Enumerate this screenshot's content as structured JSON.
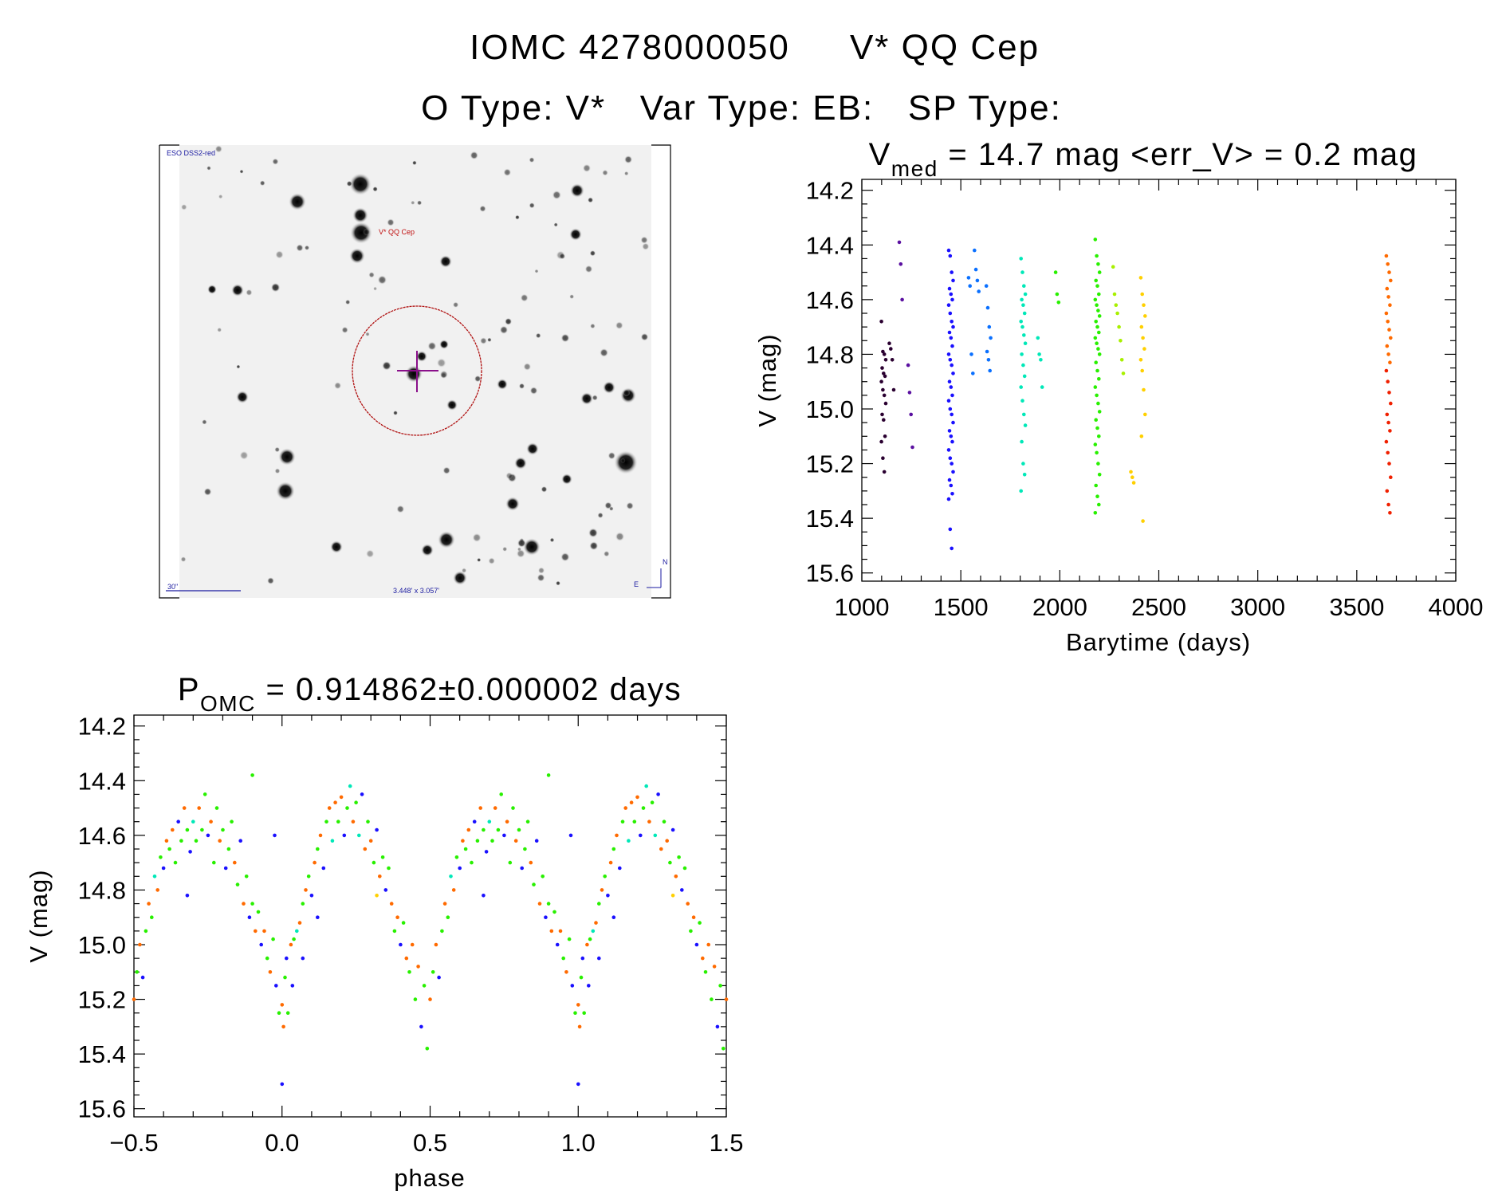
{
  "header": {
    "title_id": "IOMC 4278000050",
    "title_name": "V* QQ Cep",
    "type_line": "O Type: V*   Var Type: EB:   SP Type:"
  },
  "sky_image": {
    "survey_label": "ESO DSS2-red",
    "target_label": "V* QQ Cep",
    "scale_label": "30\"",
    "field_size_label": "3.448' x 3.057'",
    "north_label": "N",
    "east_label": "E"
  },
  "colors": [
    "#2a0030",
    "#5a10a0",
    "#1a10ff",
    "#0a70ff",
    "#00e8b8",
    "#28f000",
    "#a8f000",
    "#ffd000",
    "#ff6a00",
    "#f02000"
  ],
  "chart_data": [
    {
      "type": "scatter",
      "title_main": "V",
      "title_sub": "med",
      "title_rest": " = 14.7 mag <err_V> = 0.2 mag",
      "xlabel": "Barytime (days)",
      "ylabel": "V (mag)",
      "xlim": [
        1000,
        4000
      ],
      "ylim": [
        14.16,
        15.63
      ],
      "y_inverted": true,
      "xticks": [
        "1000",
        "1500",
        "2000",
        "2500",
        "3000",
        "3500",
        "4000"
      ],
      "yticks": [
        "14.2",
        "14.4",
        "14.6",
        "14.8",
        "15.0",
        "15.2",
        "15.4",
        "15.6"
      ],
      "groups": [
        {
          "t": 1110,
          "c": 0,
          "v": [
            14.68,
            14.79,
            14.8,
            14.82,
            14.85,
            14.87,
            14.88,
            14.9,
            14.93,
            14.95,
            14.98,
            15.02,
            15.04,
            15.1,
            15.12,
            15.18,
            15.23
          ]
        },
        {
          "t": 1150,
          "c": 0,
          "v": [
            14.76,
            14.78,
            14.82,
            14.93
          ]
        },
        {
          "t": 1200,
          "c": 1,
          "v": [
            14.39,
            14.47,
            14.6
          ]
        },
        {
          "t": 1245,
          "c": 1,
          "v": [
            14.84,
            14.94,
            15.02,
            15.14
          ]
        },
        {
          "t": 1450,
          "c": 2,
          "v": [
            14.42,
            14.44,
            14.5,
            14.53,
            14.56,
            14.58,
            14.6,
            14.62,
            14.65,
            14.68,
            14.7,
            14.72,
            14.74,
            14.77,
            14.8,
            14.82,
            14.84,
            14.87,
            14.9,
            14.92,
            14.95,
            14.97,
            15.0,
            15.02,
            15.05,
            15.08,
            15.1,
            15.12,
            15.15,
            15.18,
            15.2,
            15.23,
            15.26,
            15.28,
            15.31,
            15.33,
            15.44,
            15.51
          ]
        },
        {
          "t": 1550,
          "c": 3,
          "v": [
            14.52,
            14.55,
            14.8,
            14.87
          ]
        },
        {
          "t": 1580,
          "c": 3,
          "v": [
            14.42,
            14.49,
            14.53,
            14.57
          ]
        },
        {
          "t": 1640,
          "c": 3,
          "v": [
            14.55,
            14.63,
            14.7,
            14.74,
            14.79,
            14.82,
            14.86
          ]
        },
        {
          "t": 1815,
          "c": 4,
          "v": [
            14.45,
            14.5,
            14.55,
            14.58,
            14.6,
            14.62,
            14.65,
            14.68,
            14.7,
            14.73,
            14.76,
            14.8,
            14.84,
            14.88,
            14.92,
            14.97,
            15.02,
            15.06,
            15.12,
            15.2,
            15.24,
            15.3
          ]
        },
        {
          "t": 1900,
          "c": 4,
          "v": [
            14.74,
            14.8,
            14.82,
            14.92
          ]
        },
        {
          "t": 1990,
          "c": 5,
          "v": [
            14.5,
            14.58,
            14.61
          ]
        },
        {
          "t": 2190,
          "c": 5,
          "v": [
            14.38,
            14.44,
            14.47,
            14.5,
            14.53,
            14.55,
            14.58,
            14.6,
            14.62,
            14.64,
            14.66,
            14.68,
            14.7,
            14.72,
            14.74,
            14.76,
            14.78,
            14.8,
            14.83,
            14.86,
            14.89,
            14.92,
            14.95,
            14.98,
            15.01,
            15.04,
            15.07,
            15.1,
            15.13,
            15.16,
            15.2,
            15.24,
            15.28,
            15.32,
            15.35,
            15.38
          ]
        },
        {
          "t": 2280,
          "c": 6,
          "v": [
            14.48,
            14.58,
            14.62,
            14.65
          ]
        },
        {
          "t": 2310,
          "c": 6,
          "v": [
            14.7,
            14.75,
            14.82,
            14.87
          ]
        },
        {
          "t": 2370,
          "c": 7,
          "v": [
            15.23,
            15.25,
            15.27
          ]
        },
        {
          "t": 2420,
          "c": 7,
          "v": [
            14.52,
            14.58,
            14.62,
            14.66,
            14.7,
            14.74,
            14.78,
            14.82,
            14.86,
            14.93,
            15.02,
            15.1,
            15.41
          ]
        },
        {
          "t": 3660,
          "c": 8,
          "v": [
            14.44,
            14.47,
            14.5,
            14.53,
            14.56,
            14.59,
            14.62,
            14.65,
            14.68,
            14.71,
            14.74,
            14.77,
            14.8,
            14.83
          ]
        },
        {
          "t": 3660,
          "c": 9,
          "v": [
            14.86,
            14.9,
            14.94,
            14.98,
            15.02,
            15.05,
            15.08,
            15.12,
            15.16,
            15.2,
            15.25,
            15.3,
            15.35,
            15.38
          ]
        }
      ]
    },
    {
      "type": "scatter",
      "title_main": "P",
      "title_sub": "OMC",
      "title_rest": " = 0.914862±0.000002 days",
      "xlabel": "phase",
      "ylabel": "V (mag)",
      "xlim": [
        -0.5,
        1.5
      ],
      "ylim": [
        14.16,
        15.63
      ],
      "y_inverted": true,
      "phase_repeats": true,
      "xticks": [
        "−0.5",
        "0.0",
        "0.5",
        "1.0",
        "1.5"
      ],
      "yticks": [
        "14.2",
        "14.4",
        "14.6",
        "14.8",
        "15.0",
        "15.2",
        "15.4",
        "15.6"
      ],
      "points": [
        [
          0.0,
          15.22,
          8
        ],
        [
          0.005,
          15.3,
          8
        ],
        [
          0.01,
          15.12,
          5
        ],
        [
          0.015,
          15.05,
          2
        ],
        [
          0.02,
          15.25,
          5
        ],
        [
          0.03,
          15.0,
          8
        ],
        [
          0.035,
          15.15,
          2
        ],
        [
          0.04,
          14.98,
          5
        ],
        [
          0.05,
          14.95,
          4
        ],
        [
          0.06,
          14.92,
          8
        ],
        [
          0.07,
          15.05,
          2
        ],
        [
          0.07,
          14.85,
          5
        ],
        [
          0.08,
          14.8,
          8
        ],
        [
          0.09,
          14.75,
          5
        ],
        [
          0.1,
          14.82,
          2
        ],
        [
          0.11,
          14.7,
          8
        ],
        [
          0.12,
          14.65,
          5
        ],
        [
          0.13,
          14.6,
          8
        ],
        [
          0.14,
          14.72,
          2
        ],
        [
          0.15,
          14.55,
          5
        ],
        [
          0.16,
          14.5,
          8
        ],
        [
          0.17,
          14.62,
          4
        ],
        [
          0.18,
          14.48,
          8
        ],
        [
          0.19,
          14.55,
          5
        ],
        [
          0.2,
          14.46,
          8
        ],
        [
          0.21,
          14.6,
          2
        ],
        [
          0.22,
          14.5,
          5
        ],
        [
          0.24,
          14.55,
          8
        ],
        [
          0.25,
          14.48,
          5
        ],
        [
          0.26,
          14.6,
          4
        ],
        [
          0.27,
          14.45,
          2
        ],
        [
          0.28,
          14.65,
          8
        ],
        [
          0.29,
          14.55,
          5
        ],
        [
          0.3,
          14.62,
          8
        ],
        [
          0.31,
          14.7,
          5
        ],
        [
          0.32,
          14.58,
          2
        ],
        [
          0.32,
          14.82,
          7
        ],
        [
          0.33,
          14.75,
          8
        ],
        [
          0.34,
          14.68,
          5
        ],
        [
          0.35,
          14.8,
          2
        ],
        [
          0.36,
          14.72,
          5
        ],
        [
          0.37,
          14.85,
          8
        ],
        [
          0.38,
          14.95,
          5
        ],
        [
          0.39,
          14.9,
          8
        ],
        [
          0.4,
          15.0,
          2
        ],
        [
          0.41,
          14.92,
          5
        ],
        [
          0.42,
          15.05,
          8
        ],
        [
          0.43,
          15.1,
          5
        ],
        [
          0.44,
          15.0,
          8
        ],
        [
          0.45,
          15.2,
          5
        ],
        [
          0.46,
          15.08,
          8
        ],
        [
          0.47,
          15.3,
          2
        ],
        [
          0.48,
          15.15,
          5
        ],
        [
          0.49,
          15.38,
          5
        ],
        [
          0.5,
          15.2,
          8
        ],
        [
          0.51,
          15.1,
          5
        ],
        [
          0.52,
          15.0,
          8
        ],
        [
          0.53,
          15.12,
          2
        ],
        [
          0.54,
          14.95,
          5
        ],
        [
          0.55,
          14.85,
          8
        ],
        [
          0.56,
          14.9,
          5
        ],
        [
          0.57,
          14.75,
          4
        ],
        [
          0.58,
          14.8,
          8
        ],
        [
          0.59,
          14.68,
          5
        ],
        [
          0.6,
          14.72,
          2
        ],
        [
          0.61,
          14.62,
          8
        ],
        [
          0.62,
          14.65,
          5
        ],
        [
          0.63,
          14.58,
          8
        ],
        [
          0.64,
          14.7,
          5
        ],
        [
          0.65,
          14.55,
          2
        ],
        [
          0.66,
          14.62,
          5
        ],
        [
          0.67,
          14.5,
          8
        ],
        [
          0.68,
          14.58,
          5
        ],
        [
          0.69,
          14.66,
          2
        ],
        [
          0.7,
          14.55,
          4
        ],
        [
          0.71,
          14.62,
          5
        ],
        [
          0.72,
          14.5,
          8
        ],
        [
          0.73,
          14.58,
          5
        ],
        [
          0.74,
          14.45,
          5
        ],
        [
          0.75,
          14.6,
          2
        ],
        [
          0.76,
          14.55,
          8
        ],
        [
          0.77,
          14.7,
          5
        ],
        [
          0.78,
          14.5,
          5
        ],
        [
          0.79,
          14.62,
          8
        ],
        [
          0.8,
          14.58,
          5
        ],
        [
          0.81,
          14.72,
          2
        ],
        [
          0.82,
          14.65,
          5
        ],
        [
          0.83,
          14.55,
          5
        ],
        [
          0.84,
          14.7,
          8
        ],
        [
          0.85,
          14.78,
          5
        ],
        [
          0.86,
          14.62,
          2
        ],
        [
          0.87,
          14.85,
          8
        ],
        [
          0.88,
          14.75,
          5
        ],
        [
          0.89,
          14.9,
          2
        ],
        [
          0.9,
          14.85,
          5
        ],
        [
          0.9,
          14.38,
          5
        ],
        [
          0.91,
          14.95,
          8
        ],
        [
          0.92,
          14.88,
          5
        ],
        [
          0.93,
          15.0,
          2
        ],
        [
          0.94,
          14.95,
          8
        ],
        [
          0.95,
          15.05,
          5
        ],
        [
          0.96,
          15.1,
          8
        ],
        [
          0.97,
          14.98,
          5
        ],
        [
          0.975,
          14.6,
          2
        ],
        [
          0.98,
          15.15,
          2
        ],
        [
          0.99,
          15.25,
          5
        ],
        [
          0.0,
          15.51,
          2
        ],
        [
          0.23,
          14.42,
          4
        ],
        [
          0.68,
          14.82,
          2
        ],
        [
          0.12,
          14.9,
          2
        ]
      ]
    }
  ]
}
